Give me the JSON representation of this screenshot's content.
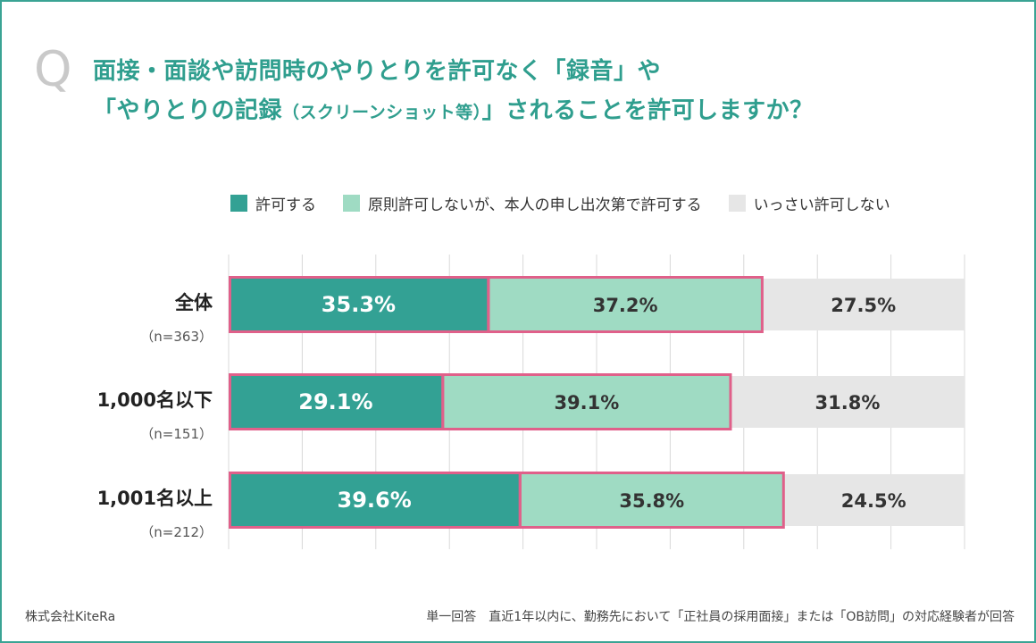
{
  "question": {
    "marker": "Q",
    "line1": "面接・面談や訪問時のやりとりを許可なく「録音」や",
    "line2_main": "「やりとりの記録",
    "line2_small": "（スクリーンショット等）",
    "line2_end": "」されることを許可しますか？"
  },
  "colors": {
    "accent": "#2f9e8e",
    "series1": "#33a194",
    "series2": "#9fdbc3",
    "series3": "#e6e6e6",
    "highlight_border": "#e0608a",
    "frame": "#3aa394"
  },
  "chart_data": {
    "type": "bar",
    "orientation": "horizontal",
    "stacked": true,
    "categories": [
      "全体",
      "1,000名以下",
      "1,001名以上"
    ],
    "category_notes": [
      "（n=363）",
      "（n=151）",
      "（n=212）"
    ],
    "series": [
      {
        "name": "許可する",
        "values": [
          35.3,
          29.1,
          39.6
        ],
        "color": "#33a194"
      },
      {
        "name": "原則許可しないが、本人の申し出次第で許可する",
        "values": [
          37.2,
          39.1,
          35.8
        ],
        "color": "#9fdbc3"
      },
      {
        "name": "いっさい許可しない",
        "values": [
          27.5,
          31.8,
          24.5
        ],
        "color": "#e6e6e6"
      }
    ],
    "value_labels": [
      [
        "35.3%",
        "37.2%",
        "27.5%"
      ],
      [
        "29.1%",
        "39.1%",
        "31.8%"
      ],
      [
        "39.6%",
        "35.8%",
        "24.5%"
      ]
    ],
    "xlim": [
      0,
      100
    ],
    "grid": true,
    "legend_position": "top"
  },
  "footer": {
    "left": "株式会社KiteRa",
    "right": "単一回答　直近1年以内に、勤務先において「正社員の採用面接」または「OB訪問」の対応経験者が回答"
  }
}
